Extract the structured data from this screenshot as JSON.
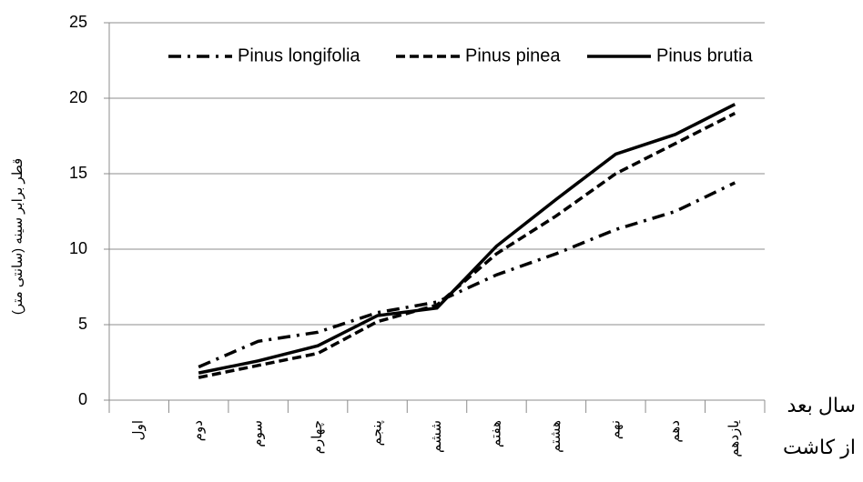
{
  "chart_data": {
    "type": "line",
    "y_label": "قطر برابر سینه (سانتی متر)",
    "x_label": [
      "سال بعد",
      "از کاشت"
    ],
    "categories": [
      "اول",
      "دوم",
      "سوم",
      "چهارم",
      "پنجم",
      "ششم",
      "هفتم",
      "هشتم",
      "نهم",
      "دهم",
      "یازدهم"
    ],
    "series": [
      {
        "name": "Pinus longifolia",
        "color": "#000000",
        "style": "dash-dot",
        "values": [
          null,
          2.2,
          3.9,
          4.5,
          5.8,
          6.5,
          8.3,
          9.7,
          11.3,
          12.5,
          14.4
        ]
      },
      {
        "name": "Pinus pinea",
        "color": "#000000",
        "style": "dash",
        "values": [
          null,
          1.5,
          2.3,
          3.1,
          5.2,
          6.3,
          9.7,
          12.2,
          15.0,
          17.0,
          19.0
        ]
      },
      {
        "name": "Pinus brutia",
        "color": "#000000",
        "style": "solid",
        "values": [
          null,
          1.8,
          2.6,
          3.6,
          5.6,
          6.1,
          10.2,
          13.3,
          16.3,
          17.6,
          19.6
        ]
      }
    ],
    "ylim": [
      0,
      25
    ],
    "yticks": [
      0,
      5,
      10,
      15,
      20,
      25
    ],
    "grid": true,
    "legend": "top"
  }
}
